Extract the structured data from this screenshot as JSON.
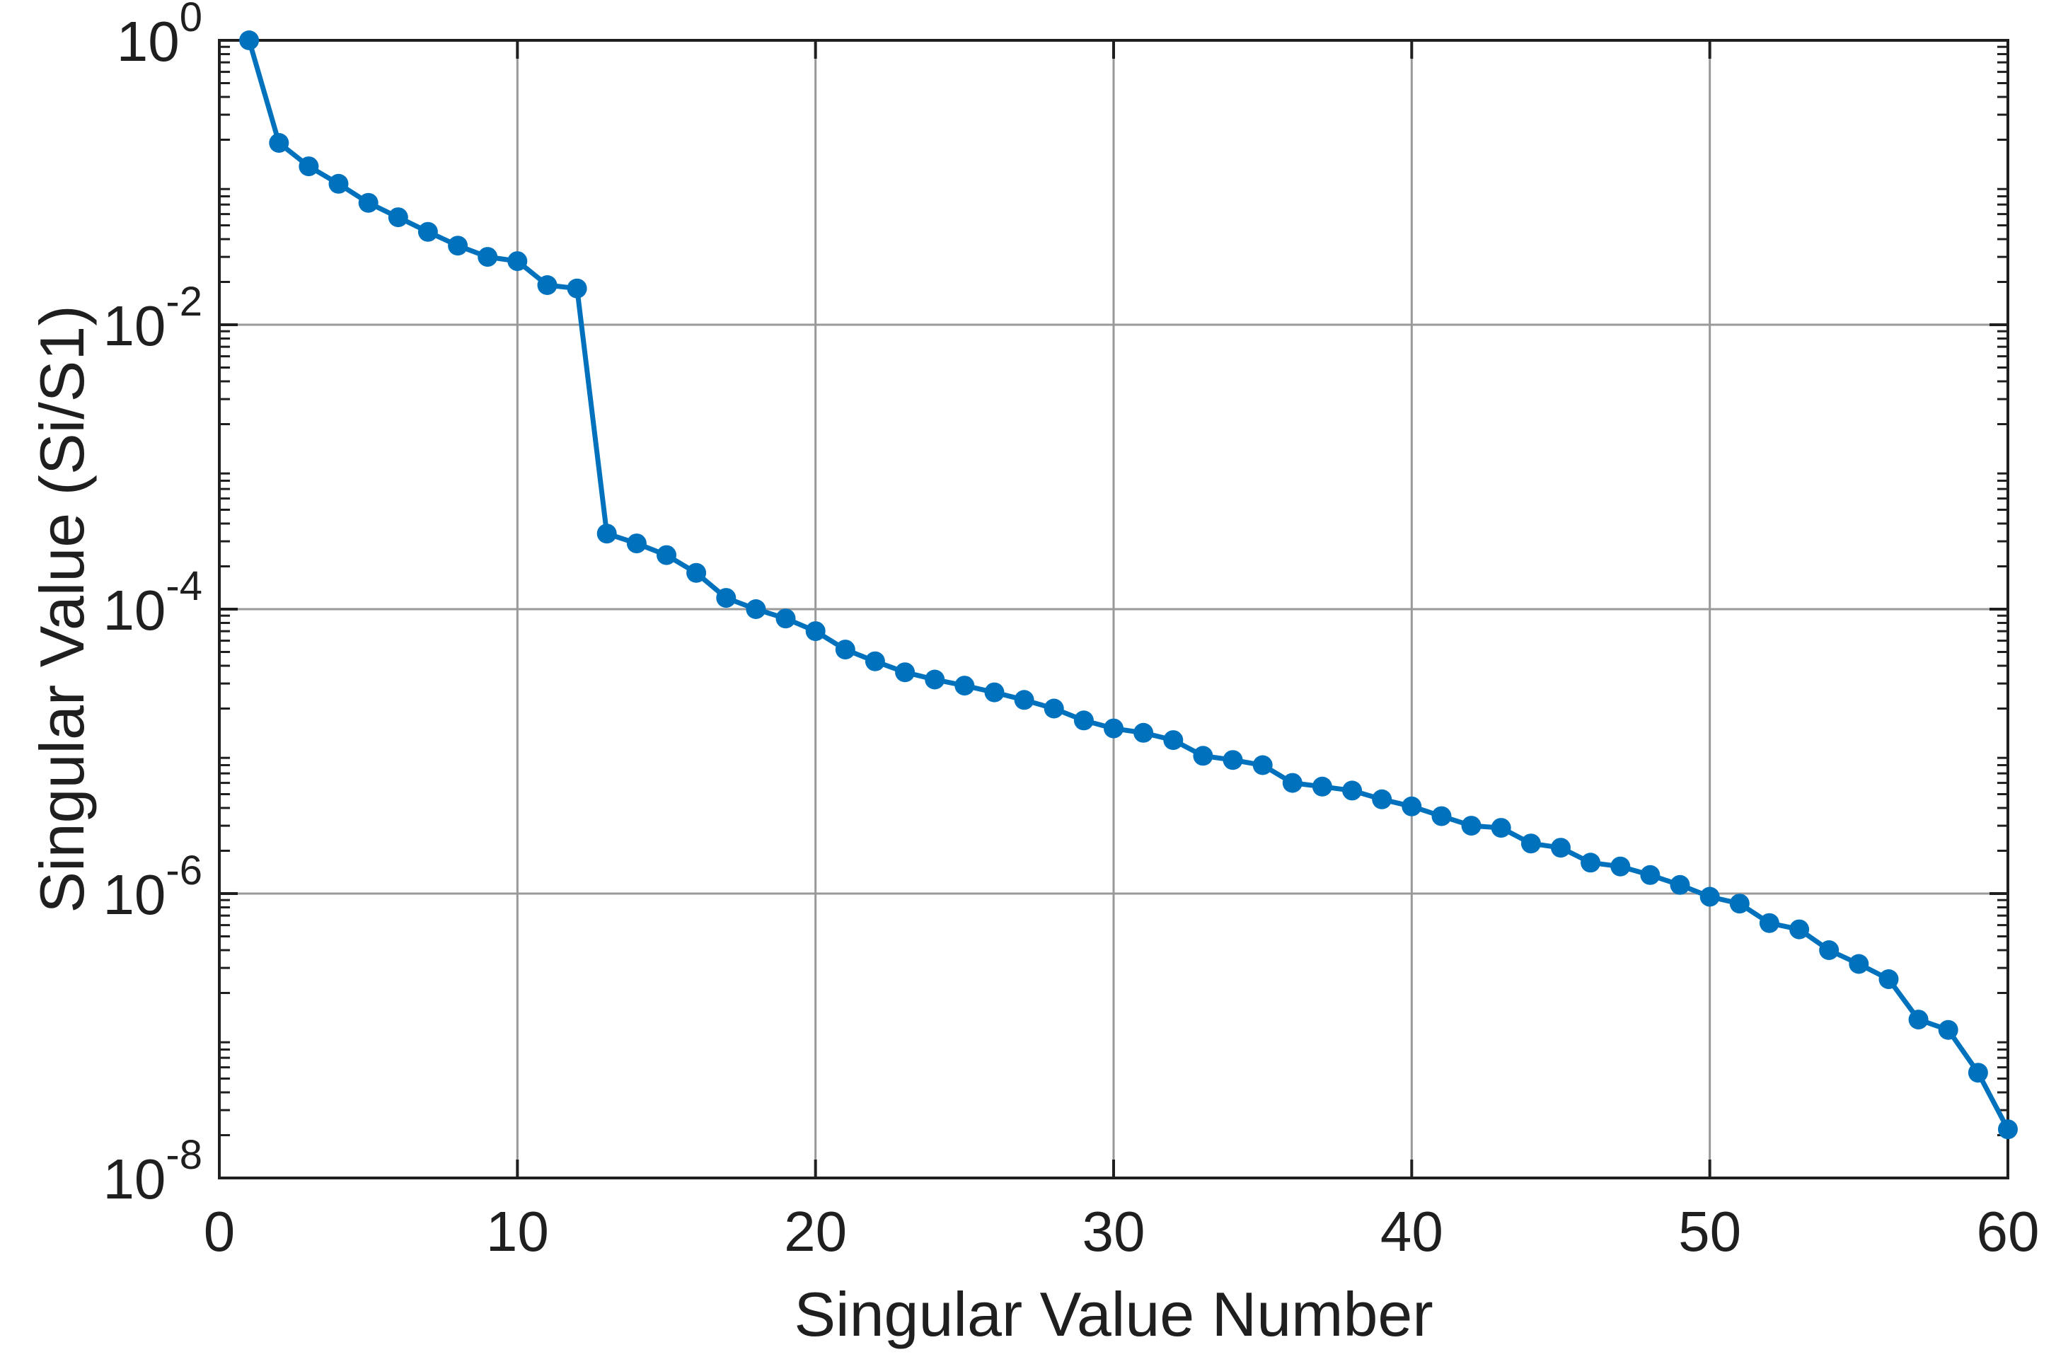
{
  "chart_data": {
    "type": "line",
    "title": "",
    "xlabel": "Singular Value Number",
    "ylabel": "Singular Value (Si/S1)",
    "scale": "semilog-y",
    "grid": true,
    "legend": "none",
    "line_color": "#0072BD",
    "marker": "filled-circle",
    "xlim": [
      0,
      60
    ],
    "ylim": [
      1e-08,
      1
    ],
    "x_ticks": [
      0,
      10,
      20,
      30,
      40,
      50,
      60
    ],
    "x_tick_labels": [
      "0",
      "10",
      "20",
      "30",
      "40",
      "50",
      "60"
    ],
    "y_tick_base": "10",
    "y_tick_exponents": [
      "0",
      "-2",
      "-4",
      "-6",
      "-8"
    ],
    "x": [
      1,
      2,
      3,
      4,
      5,
      6,
      7,
      8,
      9,
      10,
      11,
      12,
      13,
      14,
      15,
      16,
      17,
      18,
      19,
      20,
      21,
      22,
      23,
      24,
      25,
      26,
      27,
      28,
      29,
      30,
      31,
      32,
      33,
      34,
      35,
      36,
      37,
      38,
      39,
      40,
      41,
      42,
      43,
      44,
      45,
      46,
      47,
      48,
      49,
      50,
      51,
      52,
      53,
      54,
      55,
      56,
      57,
      58,
      59,
      60
    ],
    "values": [
      1.0,
      0.19,
      0.13,
      0.098,
      0.072,
      0.057,
      0.045,
      0.036,
      0.03,
      0.028,
      0.019,
      0.018,
      0.00034,
      0.00029,
      0.00024,
      0.00018,
      0.00012,
      0.0001,
      8.6e-05,
      7e-05,
      5.2e-05,
      4.3e-05,
      3.6e-05,
      3.2e-05,
      2.9e-05,
      2.6e-05,
      2.3e-05,
      2e-05,
      1.65e-05,
      1.45e-05,
      1.35e-05,
      1.2e-05,
      9.3e-06,
      8.7e-06,
      8e-06,
      6e-06,
      5.65e-06,
      5.3e-06,
      4.6e-06,
      4.1e-06,
      3.5e-06,
      3e-06,
      2.9e-06,
      2.25e-06,
      2.1e-06,
      1.65e-06,
      1.55e-06,
      1.35e-06,
      1.15e-06,
      9.5e-07,
      8.5e-07,
      6.2e-07,
      5.6e-07,
      4e-07,
      3.2e-07,
      2.5e-07,
      1.3e-07,
      1.1e-07,
      5.5e-08,
      2.2e-08
    ]
  },
  "colors": {
    "line": "#0072BD",
    "grid": "#999999",
    "axis": "#1f1f1f",
    "background": "#ffffff"
  }
}
